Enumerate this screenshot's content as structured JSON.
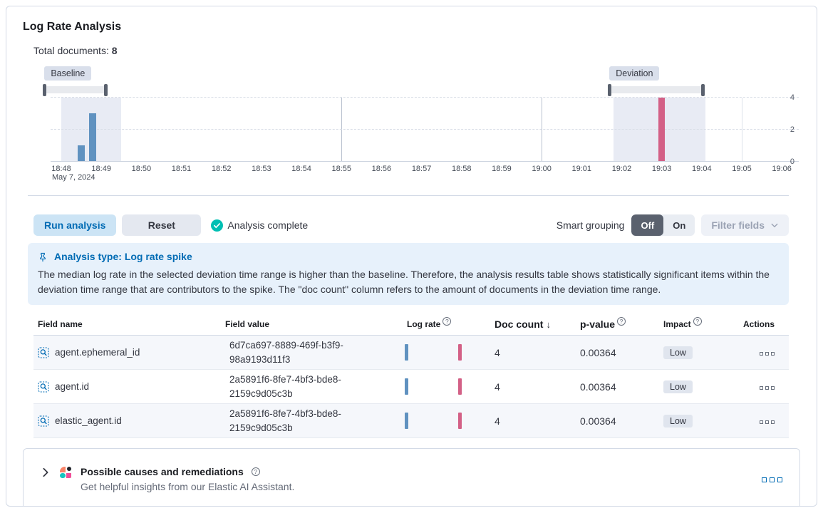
{
  "panel": {
    "title": "Log Rate Analysis"
  },
  "summary": {
    "label": "Total documents:",
    "value": "8"
  },
  "chart_data": {
    "type": "bar",
    "title": "",
    "xlabel": "",
    "ylabel": "",
    "x_date_label": "May 7, 2024",
    "x_ticks": [
      "18:48",
      "18:49",
      "18:50",
      "18:51",
      "18:52",
      "18:53",
      "18:54",
      "18:55",
      "18:56",
      "18:57",
      "18:58",
      "18:59",
      "19:00",
      "19:01",
      "19:02",
      "19:03",
      "19:04",
      "19:05",
      "19:06"
    ],
    "y_ticks": [
      0,
      2,
      4
    ],
    "ylim": [
      0,
      4
    ],
    "grid": "horizontal-dashed",
    "v_gridlines_min": [
      7,
      12,
      17
    ],
    "series": [
      {
        "name": "baseline",
        "color": "#6092C0",
        "points": [
          {
            "minute": 0.5,
            "value": 1
          },
          {
            "minute": 0.78,
            "value": 3
          }
        ]
      },
      {
        "name": "deviation",
        "color": "#D36086",
        "points": [
          {
            "minute": 15.0,
            "value": 4
          }
        ]
      }
    ],
    "brushes": [
      {
        "label": "Baseline",
        "start_minute": 0,
        "end_minute": 1.5
      },
      {
        "label": "Deviation",
        "start_minute": 13.8,
        "end_minute": 16.1
      }
    ]
  },
  "controls": {
    "run_button": "Run analysis",
    "reset_button": "Reset",
    "status": "Analysis complete",
    "smart_grouping_label": "Smart grouping",
    "smart_grouping_off": "Off",
    "smart_grouping_on": "On",
    "smart_grouping_selected": "Off",
    "filter_fields_button": "Filter fields"
  },
  "callout": {
    "title": "Analysis type: Log rate spike",
    "body": "The median log rate in the selected deviation time range is higher than the baseline. Therefore, the analysis results table shows statistically significant items within the deviation time range that are contributors to the spike. The \"doc count\" column refers to the amount of documents in the deviation time range."
  },
  "table": {
    "columns": [
      {
        "label": "Field name"
      },
      {
        "label": "Field value"
      },
      {
        "label": "Log rate",
        "info": true
      },
      {
        "label": "Doc count",
        "sort": "desc"
      },
      {
        "label": "p-value",
        "info": true
      },
      {
        "label": "Impact",
        "info": true
      },
      {
        "label": "Actions"
      }
    ],
    "rows": [
      {
        "field_name": "agent.ephemeral_id",
        "field_value": "6d7ca697-8889-469f-b3f9-98a9193d11f3",
        "doc_count": "4",
        "p_value": "0.00364",
        "impact": "Low"
      },
      {
        "field_name": "agent.id",
        "field_value": "2a5891f6-8fe7-4bf3-bde8-2159c9d05c3b",
        "doc_count": "4",
        "p_value": "0.00364",
        "impact": "Low"
      },
      {
        "field_name": "elastic_agent.id",
        "field_value": "2a5891f6-8fe7-4bf3-bde8-2159c9d05c3b",
        "doc_count": "4",
        "p_value": "0.00364",
        "impact": "Low"
      }
    ]
  },
  "footer": {
    "title": "Possible causes and remediations",
    "subtitle": "Get helpful insights from our Elastic AI Assistant."
  },
  "colors": {
    "primary": "#006bb4",
    "success_check": "#00BFB3",
    "baseline_bar": "#6092C0",
    "deviation_bar": "#D36086",
    "callout_bg": "#e7f1fb",
    "region_highlight": "#e8ebf4"
  }
}
